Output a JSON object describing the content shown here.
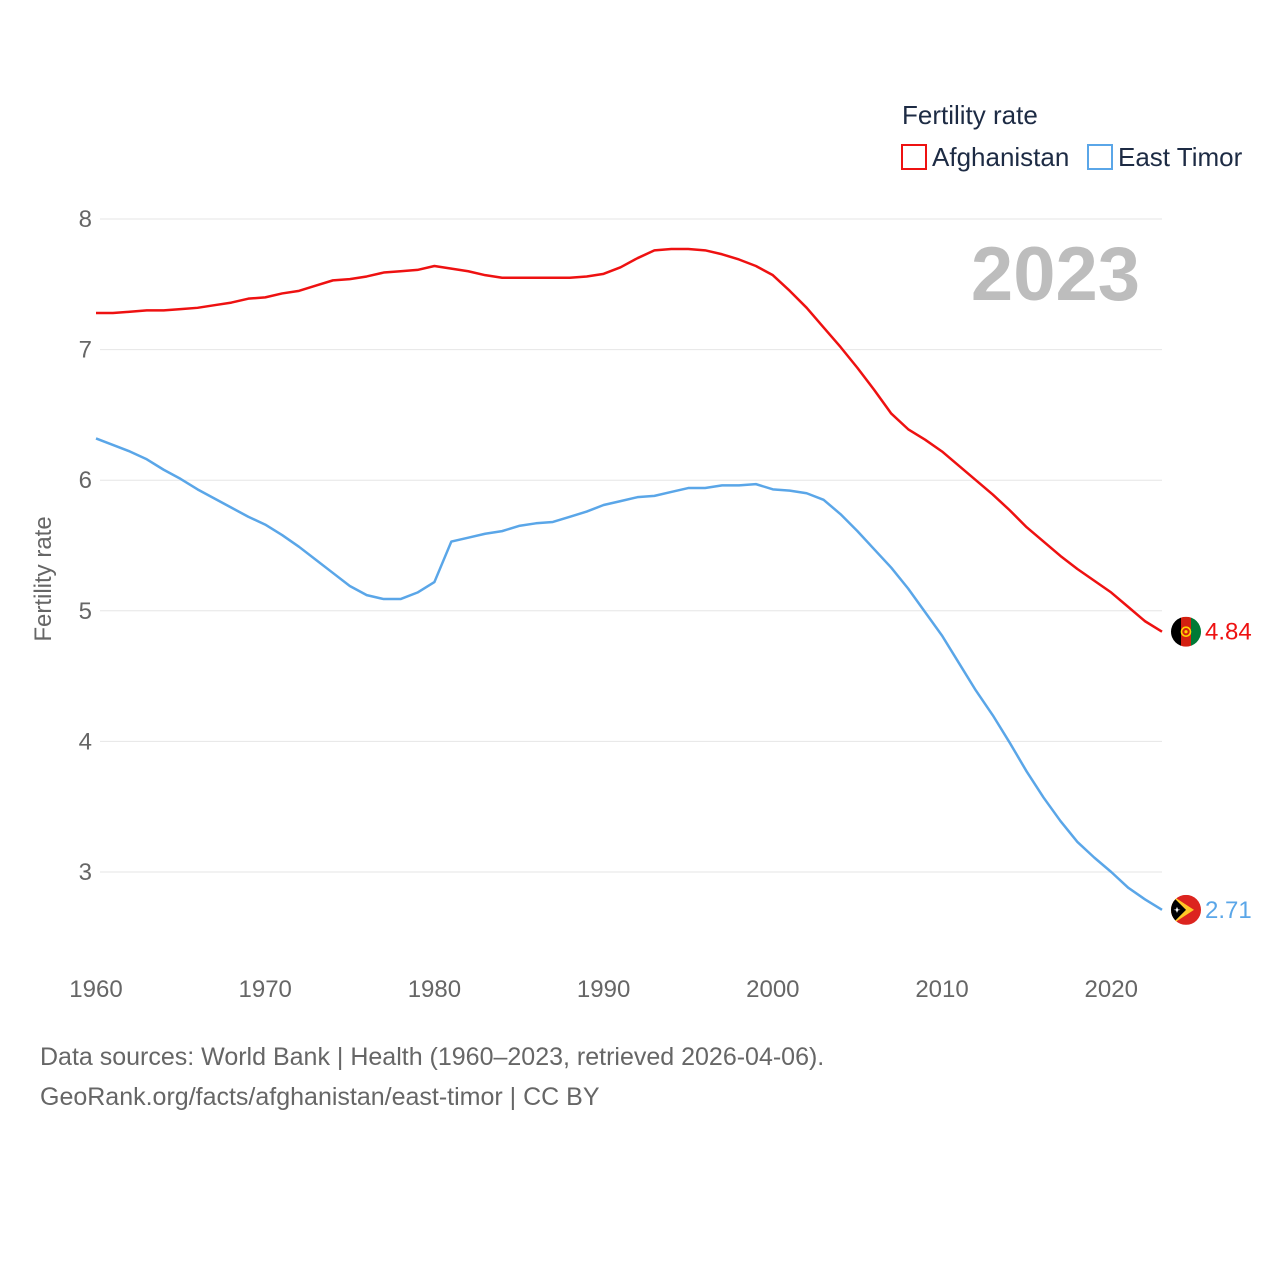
{
  "colors": {
    "afghanistan": "#ee1111",
    "east_timor": "#5aa6e8",
    "grid": "#e6e6e6",
    "tick": "#666666",
    "year": "#bdbdbd"
  },
  "year_label": "2023",
  "legend": {
    "title": "Fertility rate",
    "items": [
      "Afghanistan",
      "East Timor"
    ]
  },
  "end_labels": {
    "afghanistan": "4.84",
    "east_timor": "2.71"
  },
  "flags": {
    "afghanistan": "afghanistan-flag-icon",
    "east_timor": "east-timor-flag-icon"
  },
  "footer": {
    "line1": "Data sources: World Bank | Health (1960–2023, retrieved 2026-04-06).",
    "line2": "GeoRank.org/facts/afghanistan/east-timor | CC BY"
  },
  "chart_data": {
    "type": "line",
    "title": "",
    "xlabel": "",
    "ylabel": "Fertility rate",
    "xlim": [
      1960,
      2023
    ],
    "ylim": [
      2.5,
      8.1
    ],
    "x_ticks": [
      1960,
      1970,
      1980,
      1990,
      2000,
      2010,
      2020
    ],
    "y_ticks": [
      3,
      4,
      5,
      6,
      7,
      8
    ],
    "x": [
      1960,
      1961,
      1962,
      1963,
      1964,
      1965,
      1966,
      1967,
      1968,
      1969,
      1970,
      1971,
      1972,
      1973,
      1974,
      1975,
      1976,
      1977,
      1978,
      1979,
      1980,
      1981,
      1982,
      1983,
      1984,
      1985,
      1986,
      1987,
      1988,
      1989,
      1990,
      1991,
      1992,
      1993,
      1994,
      1995,
      1996,
      1997,
      1998,
      1999,
      2000,
      2001,
      2002,
      2003,
      2004,
      2005,
      2006,
      2007,
      2008,
      2009,
      2010,
      2011,
      2012,
      2013,
      2014,
      2015,
      2016,
      2017,
      2018,
      2019,
      2020,
      2021,
      2022,
      2023
    ],
    "series": [
      {
        "name": "Afghanistan",
        "values": [
          7.28,
          7.28,
          7.29,
          7.3,
          7.3,
          7.31,
          7.32,
          7.34,
          7.36,
          7.39,
          7.4,
          7.43,
          7.45,
          7.49,
          7.53,
          7.54,
          7.56,
          7.59,
          7.6,
          7.61,
          7.64,
          7.62,
          7.6,
          7.57,
          7.55,
          7.55,
          7.55,
          7.55,
          7.55,
          7.56,
          7.58,
          7.63,
          7.7,
          7.76,
          7.77,
          7.77,
          7.76,
          7.73,
          7.69,
          7.64,
          7.57,
          7.45,
          7.32,
          7.17,
          7.02,
          6.86,
          6.69,
          6.51,
          6.39,
          6.31,
          6.22,
          6.11,
          6.0,
          5.89,
          5.77,
          5.64,
          5.53,
          5.42,
          5.32,
          5.23,
          5.14,
          5.03,
          4.92,
          4.84
        ]
      },
      {
        "name": "East Timor",
        "values": [
          6.32,
          6.27,
          6.22,
          6.16,
          6.08,
          6.01,
          5.93,
          5.86,
          5.79,
          5.72,
          5.66,
          5.58,
          5.49,
          5.39,
          5.29,
          5.19,
          5.12,
          5.09,
          5.09,
          5.14,
          5.22,
          5.53,
          5.56,
          5.59,
          5.61,
          5.65,
          5.67,
          5.68,
          5.72,
          5.76,
          5.81,
          5.84,
          5.87,
          5.88,
          5.91,
          5.94,
          5.94,
          5.96,
          5.96,
          5.97,
          5.93,
          5.92,
          5.9,
          5.85,
          5.74,
          5.61,
          5.47,
          5.33,
          5.17,
          4.99,
          4.81,
          4.6,
          4.39,
          4.2,
          3.99,
          3.77,
          3.57,
          3.39,
          3.23,
          3.11,
          3.0,
          2.88,
          2.79,
          2.71
        ]
      }
    ],
    "legend_position": "top-right"
  }
}
